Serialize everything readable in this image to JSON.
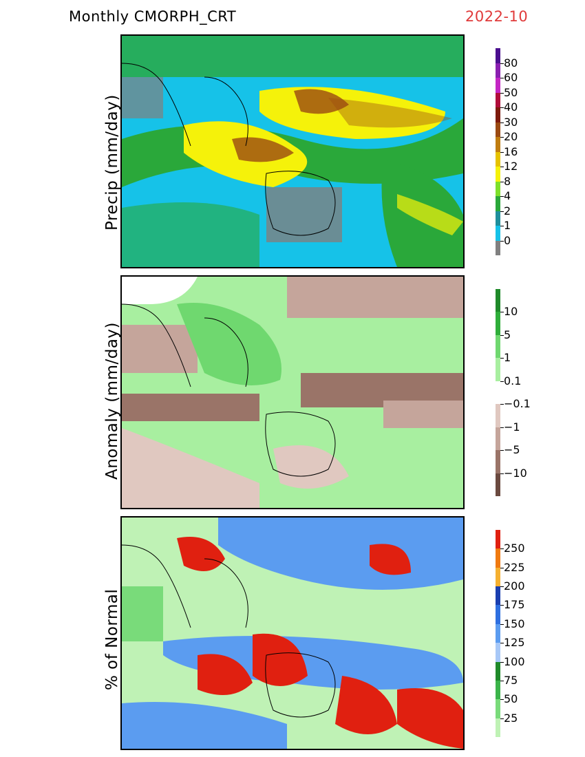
{
  "header": {
    "title": "Monthly CMORPH_CRT",
    "date": "2022-10"
  },
  "panels": [
    {
      "label": "Precip (mm/day)",
      "colorbar": {
        "colors": [
          "#4b0f8f",
          "#8a1fb0",
          "#c426c4",
          "#b00d3a",
          "#7d1a0c",
          "#9b4a12",
          "#c07d10",
          "#e6c200",
          "#f5f20a",
          "#7ee02a",
          "#2aa83a",
          "#1f8f9c",
          "#16c2e8",
          "#808080"
        ],
        "labels": [
          "80",
          "60",
          "50",
          "40",
          "30",
          "20",
          "16",
          "12",
          "8",
          "4",
          "2",
          "1",
          "0"
        ]
      }
    },
    {
      "label": "Anomaly (mm/day)",
      "colorbar": {
        "colors": [
          "#1f8a2a",
          "#2fae3a",
          "#6fd86f",
          "#a8efa0",
          "#ffffff",
          "#e0c8c0",
          "#c5a59b",
          "#9a7468",
          "#6b4a40"
        ],
        "labels": [
          "10",
          "5",
          "1",
          "0.1",
          "−0.1",
          "−1",
          "−5",
          "−10"
        ]
      }
    },
    {
      "label": "% of Normal",
      "colorbar": {
        "colors": [
          "#e02010",
          "#f07a10",
          "#f5b030",
          "#1a3fb0",
          "#2e6fe0",
          "#5b9cf0",
          "#a7c8f7",
          "#1f8a2a",
          "#3bb44a",
          "#79db7a",
          "#bff2b5"
        ],
        "labels": [
          "250",
          "225",
          "200",
          "175",
          "150",
          "125",
          "100",
          "75",
          "50",
          "25"
        ]
      }
    }
  ]
}
